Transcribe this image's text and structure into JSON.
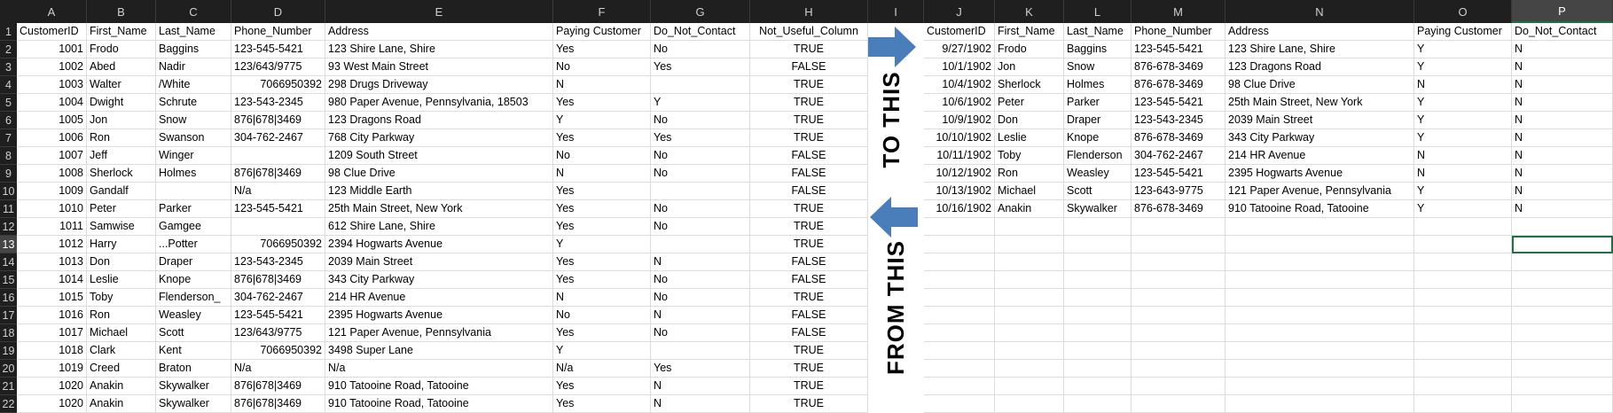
{
  "sheet": {
    "columns": [
      "A",
      "B",
      "C",
      "D",
      "E",
      "F",
      "G",
      "H",
      "I",
      "J",
      "K",
      "L",
      "M",
      "N",
      "O",
      "P"
    ],
    "rows": [
      "1",
      "2",
      "3",
      "4",
      "5",
      "6",
      "7",
      "8",
      "9",
      "10",
      "11",
      "12",
      "13",
      "14",
      "15",
      "16",
      "17",
      "18",
      "19",
      "20",
      "21",
      "22"
    ],
    "selected_column": "P",
    "selected_row": "13",
    "source_headers": [
      "CustomerID",
      "First_Name",
      "Last_Name",
      "Phone_Number",
      "Address",
      "Paying Customer",
      "Do_Not_Contact",
      "Not_Useful_Column"
    ],
    "source_rows": [
      [
        "1001",
        "Frodo",
        "Baggins",
        "123-545-5421",
        "123 Shire Lane, Shire",
        "Yes",
        "No",
        "TRUE"
      ],
      [
        "1002",
        "Abed",
        "Nadir",
        "123/643/9775",
        "93 West Main Street",
        "No",
        "Yes",
        "FALSE"
      ],
      [
        "1003",
        "Walter",
        "/White",
        "7066950392",
        "298 Drugs Driveway",
        "N",
        "",
        "TRUE"
      ],
      [
        "1004",
        "Dwight",
        "Schrute",
        "123-543-2345",
        "980 Paper Avenue, Pennsylvania, 18503",
        "Yes",
        "Y",
        "TRUE"
      ],
      [
        "1005",
        "Jon",
        "Snow",
        "876|678|3469",
        "123 Dragons Road",
        "Y",
        "No",
        "TRUE"
      ],
      [
        "1006",
        "Ron",
        "Swanson",
        "304-762-2467",
        "768 City Parkway",
        "Yes",
        "Yes",
        "TRUE"
      ],
      [
        "1007",
        "Jeff",
        "Winger",
        "",
        "1209 South Street",
        "No",
        "No",
        "FALSE"
      ],
      [
        "1008",
        "Sherlock",
        "Holmes",
        "876|678|3469",
        "98 Clue Drive",
        "N",
        "No",
        "FALSE"
      ],
      [
        "1009",
        "Gandalf",
        "",
        "N/a",
        "123 Middle Earth",
        "Yes",
        "",
        "FALSE"
      ],
      [
        "1010",
        "Peter",
        "Parker",
        "123-545-5421",
        "25th Main Street, New York",
        "Yes",
        "No",
        "TRUE"
      ],
      [
        "1011",
        "Samwise",
        "Gamgee",
        "",
        "612 Shire Lane, Shire",
        "Yes",
        "No",
        "TRUE"
      ],
      [
        "1012",
        "Harry",
        "...Potter",
        "7066950392",
        "2394 Hogwarts Avenue",
        "Y",
        "",
        "TRUE"
      ],
      [
        "1013",
        "Don",
        "Draper",
        "123-543-2345",
        "2039 Main Street",
        "Yes",
        "N",
        "FALSE"
      ],
      [
        "1014",
        "Leslie",
        "Knope",
        "876|678|3469",
        "343 City Parkway",
        "Yes",
        "No",
        "FALSE"
      ],
      [
        "1015",
        "Toby",
        "Flenderson_",
        "304-762-2467",
        "214 HR Avenue",
        "N",
        "No",
        "TRUE"
      ],
      [
        "1016",
        "Ron",
        "Weasley",
        "123-545-5421",
        "2395 Hogwarts Avenue",
        "No",
        "N",
        "FALSE"
      ],
      [
        "1017",
        "Michael",
        "Scott",
        "123/643/9775",
        "121 Paper Avenue, Pennsylvania",
        "Yes",
        "No",
        "FALSE"
      ],
      [
        "1018",
        "Clark",
        "Kent",
        "7066950392",
        "3498 Super Lane",
        "Y",
        "",
        "TRUE"
      ],
      [
        "1019",
        "Creed",
        "Braton",
        "N/a",
        "N/a",
        "N/a",
        "Yes",
        "TRUE"
      ],
      [
        "1020",
        "Anakin",
        "Skywalker",
        "876|678|3469",
        "910 Tatooine Road, Tatooine",
        "Yes",
        "N",
        "TRUE"
      ],
      [
        "1020",
        "Anakin",
        "Skywalker",
        "876|678|3469",
        "910 Tatooine Road, Tatooine",
        "Yes",
        "N",
        "TRUE"
      ]
    ],
    "result_headers": [
      "CustomerID",
      "First_Name",
      "Last_Name",
      "Phone_Number",
      "Address",
      "Paying Customer",
      "Do_Not_Contact"
    ],
    "result_rows": [
      [
        "9/27/1902",
        "Frodo",
        "Baggins",
        "123-545-5421",
        "123 Shire Lane, Shire",
        "Y",
        "N"
      ],
      [
        "10/1/1902",
        "Jon",
        "Snow",
        "876-678-3469",
        "123 Dragons Road",
        "Y",
        "N"
      ],
      [
        "10/4/1902",
        "Sherlock",
        "Holmes",
        "876-678-3469",
        "98 Clue Drive",
        "N",
        "N"
      ],
      [
        "10/6/1902",
        "Peter",
        "Parker",
        "123-545-5421",
        "25th Main Street, New York",
        "Y",
        "N"
      ],
      [
        "10/9/1902",
        "Don",
        "Draper",
        "123-543-2345",
        "2039 Main Street",
        "Y",
        "N"
      ],
      [
        "10/10/1902",
        "Leslie",
        "Knope",
        "876-678-3469",
        "343 City Parkway",
        "Y",
        "N"
      ],
      [
        "10/11/1902",
        "Toby",
        "Flenderson",
        "304-762-2467",
        "214 HR Avenue",
        "N",
        "N"
      ],
      [
        "10/12/1902",
        "Ron",
        "Weasley",
        "123-545-5421",
        "2395 Hogwarts Avenue",
        "N",
        "N"
      ],
      [
        "10/13/1902",
        "Michael",
        "Scott",
        "123-643-9775",
        "121 Paper Avenue, Pennsylvania",
        "Y",
        "N"
      ],
      [
        "10/16/1902",
        "Anakin",
        "Skywalker",
        "876-678-3469",
        "910 Tatooine Road, Tatooine",
        "Y",
        "N"
      ]
    ]
  },
  "annotations": {
    "to_label": "TO THIS",
    "from_label": "FROM THIS",
    "arrow_color": "#4a7ebb"
  }
}
